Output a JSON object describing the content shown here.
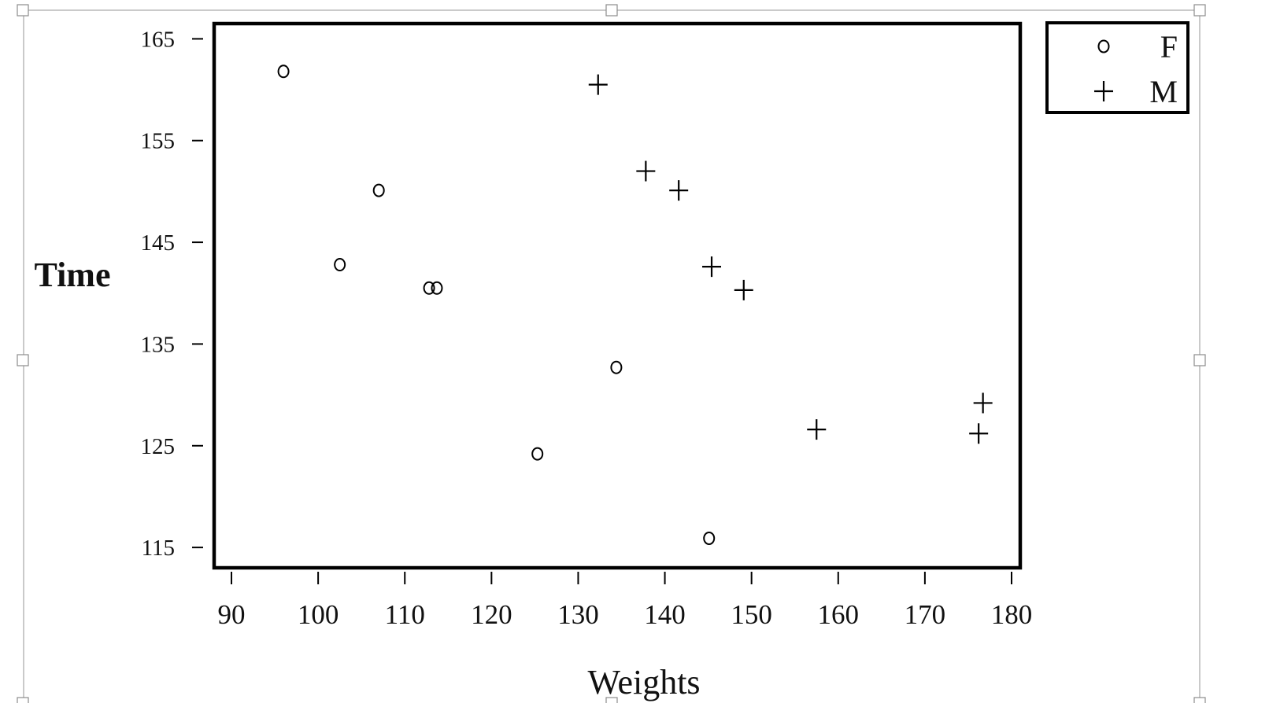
{
  "chart_data": {
    "type": "scatter",
    "title": "",
    "xlabel": "Weights",
    "ylabel": "Time",
    "xlim": [
      88,
      181
    ],
    "ylim": [
      113,
      166.5
    ],
    "xticks": [
      "90",
      "100",
      "110",
      "120",
      "130",
      "140",
      "150",
      "160",
      "170",
      "180"
    ],
    "yticks": [
      "165",
      "155",
      "145",
      "135",
      "125",
      "115"
    ],
    "grid": false,
    "legend_position": "top-right, outside",
    "series": [
      {
        "name": "F",
        "marker": "circle",
        "points": [
          {
            "x": 96,
            "y": 161.8
          },
          {
            "x": 102.5,
            "y": 142.8
          },
          {
            "x": 107,
            "y": 150.1
          },
          {
            "x": 112.8,
            "y": 140.5
          },
          {
            "x": 113.7,
            "y": 140.5
          },
          {
            "x": 125.3,
            "y": 124.2
          },
          {
            "x": 134.4,
            "y": 132.7
          },
          {
            "x": 145.1,
            "y": 115.9
          }
        ]
      },
      {
        "name": "M",
        "marker": "plus",
        "points": [
          {
            "x": 132.3,
            "y": 160.5
          },
          {
            "x": 137.8,
            "y": 152.0
          },
          {
            "x": 141.6,
            "y": 150.1
          },
          {
            "x": 145.4,
            "y": 142.6
          },
          {
            "x": 149.1,
            "y": 140.3
          },
          {
            "x": 157.5,
            "y": 126.6
          },
          {
            "x": 176.2,
            "y": 126.2
          },
          {
            "x": 176.7,
            "y": 129.2
          }
        ]
      }
    ]
  },
  "colors": {
    "ink": "#000000",
    "selection_frame": "#a6a6a6",
    "background": "#ffffff"
  },
  "icons": {
    "circle_marker": "circle-marker-icon",
    "plus_marker": "plus-marker-icon"
  }
}
